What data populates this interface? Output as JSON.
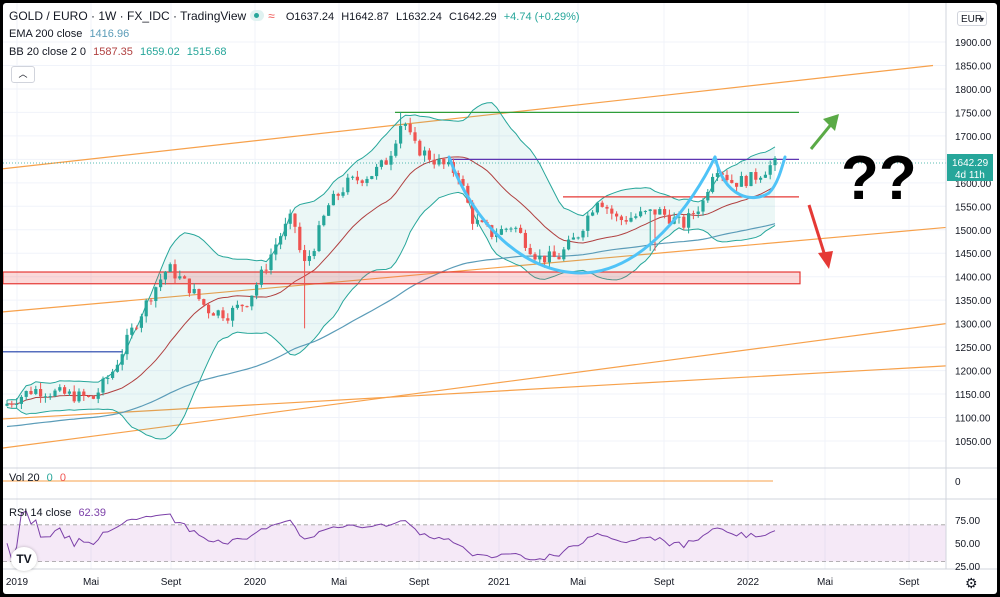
{
  "header": {
    "symbol": "GOLD / EURO · 1W · FX_IDC · TradingView",
    "open": "O1637.24",
    "high": "H1642.87",
    "low": "L1632.24",
    "close": "C1642.29",
    "change": "+4.74 (+0.29%)"
  },
  "indicators": {
    "ema_label": "EMA 200 close",
    "ema_value": "1416.96",
    "bb_label": "BB 20 close 2 0",
    "bb_basis": "1587.35",
    "bb_upper": "1659.02",
    "bb_lower": "1515.68",
    "vol_label": "Vol 20",
    "vol_v1": "0",
    "vol_v2": "0",
    "rsi_label": "RSI 14 close",
    "rsi_value": "62.39"
  },
  "currency": "EUR",
  "price_axis": [
    "1900.00",
    "1850.00",
    "1800.00",
    "1750.00",
    "1700.00",
    "1650.00",
    "1600.00",
    "1550.00",
    "1500.00",
    "1450.00",
    "1400.00",
    "1350.00",
    "1300.00",
    "1250.00",
    "1200.00",
    "1150.00",
    "1100.00",
    "1050.00"
  ],
  "last_price": "1642.29",
  "countdown": "4d 11h",
  "volume_axis": "0",
  "rsi_axis": [
    "75.00",
    "50.00",
    "25.00"
  ],
  "time_axis": [
    "2019",
    "Mai",
    "Sept",
    "2020",
    "Mai",
    "Sept",
    "2021",
    "Mai",
    "Sept",
    "2022",
    "Mai",
    "Sept"
  ],
  "annotation": "??",
  "colors": {
    "up": "#26a69a",
    "down": "#ef5350",
    "ema": "#5b9cb8",
    "bb_basis": "#b04040",
    "bb_band": "#26a69a",
    "trend": "#f7a14b",
    "cup": "#4fc3f7",
    "rsi": "#7b3fa8"
  },
  "icons": {
    "collapse": "chevron-up-icon",
    "logo": "tradingview-logo-icon",
    "settings": "gear-icon"
  },
  "chart_data": {
    "type": "candlestick",
    "price_range": [
      1000,
      1930
    ],
    "levels": {
      "resistance_top": 1750,
      "neckline": 1650,
      "support_red": 1570,
      "demand_zone": [
        1385,
        1410
      ],
      "blue_level": 1240
    },
    "rsi_levels": [
      70,
      30
    ],
    "rsi_range": [
      22,
      98
    ],
    "time_labels": [
      "2019",
      "Mai",
      "Sept",
      "2020",
      "Mai",
      "Sept",
      "2021",
      "Mai",
      "Sept",
      "2022",
      "Mai",
      "Sept"
    ]
  }
}
